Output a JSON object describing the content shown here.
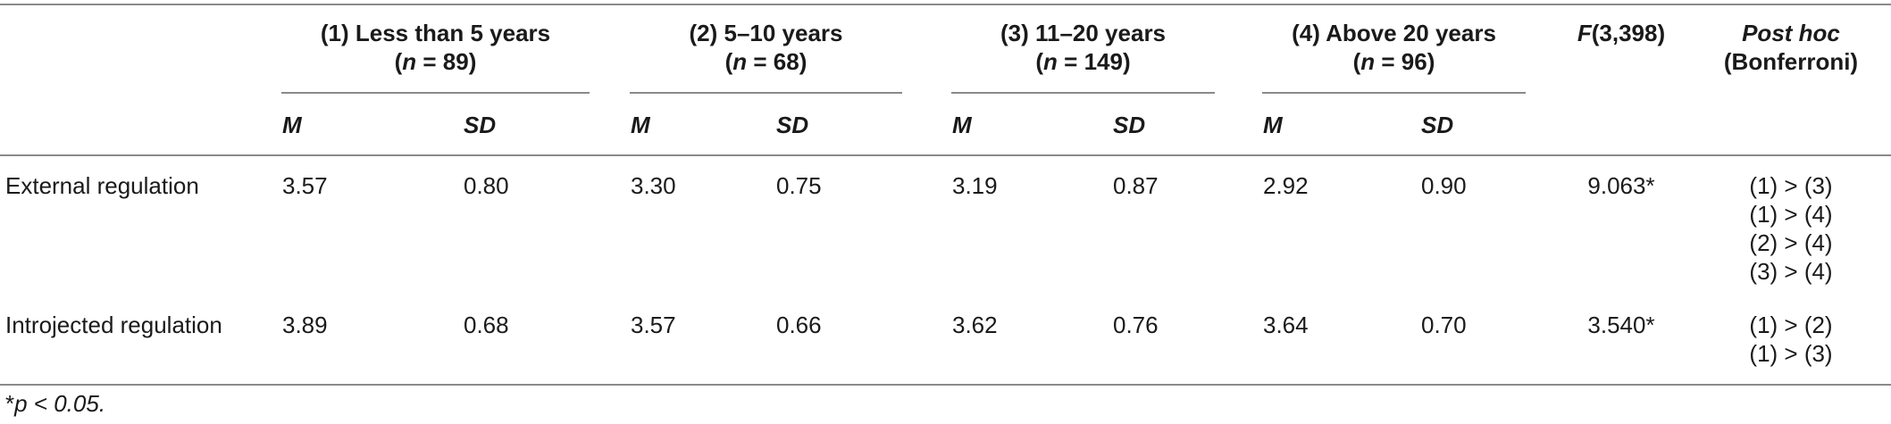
{
  "table": {
    "groups": [
      {
        "label": "(1) Less than 5 years",
        "n_label": "(n = 89)",
        "n_prefix": "(",
        "n_var": "n",
        "n_rest": " = 89)"
      },
      {
        "label": "(2) 5–10 years",
        "n_prefix": "(",
        "n_var": "n",
        "n_rest": " = 68)"
      },
      {
        "label": "(3) 11–20 years",
        "n_prefix": "(",
        "n_var": "n",
        "n_rest": " = 149)"
      },
      {
        "label": "(4) Above 20 years",
        "n_prefix": "(",
        "n_var": "n",
        "n_rest": " = 96)"
      }
    ],
    "f_header": {
      "var": "F",
      "rest": "(3,398)"
    },
    "posthoc_header": {
      "line1": "Post hoc",
      "line2": "(Bonferroni)"
    },
    "sub_m": "M",
    "sub_sd": "SD",
    "rows": [
      {
        "label": "External regulation",
        "values": [
          "3.57",
          "0.80",
          "3.30",
          "0.75",
          "3.19",
          "0.87",
          "2.92",
          "0.90"
        ],
        "f": "9.063*",
        "posthoc": [
          "(1) > (3)",
          "(1) > (4)",
          "(2) > (4)",
          "(3) > (4)"
        ]
      },
      {
        "label": "Introjected regulation",
        "values": [
          "3.89",
          "0.68",
          "3.57",
          "0.66",
          "3.62",
          "0.76",
          "3.64",
          "0.70"
        ],
        "f": "3.540*",
        "posthoc": [
          "(1) > (2)",
          "(1) > (3)"
        ]
      }
    ],
    "footnote_star": "*",
    "footnote_text": "p < 0.05."
  }
}
